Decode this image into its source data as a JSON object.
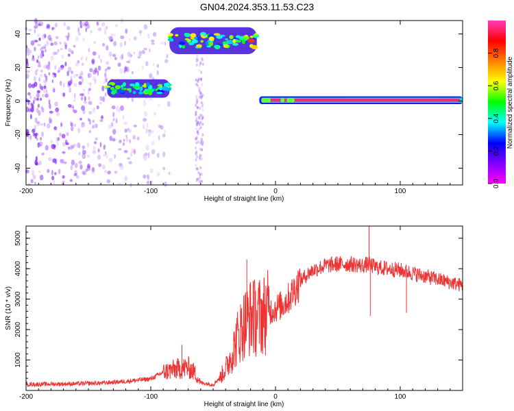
{
  "figure": {
    "title": "GN04.2024.353.11.53.C23"
  },
  "chart_data": [
    {
      "type": "heatmap",
      "title": "GN04.2024.353.11.53.C23",
      "xlabel": "Height of straight line (km)",
      "ylabel": "Frequency (Hz)",
      "xlim": [
        -200,
        150
      ],
      "ylim": [
        -50,
        48
      ],
      "x_ticks": [
        -200,
        -100,
        0,
        100
      ],
      "y_ticks": [
        40,
        20,
        0,
        -20,
        -40
      ],
      "colorbar": {
        "label": "Normalized spectral amplitude",
        "range": [
          0,
          1
        ],
        "ticks": [
          "0.0",
          "0.2",
          "0.4",
          "0.6",
          "0.8"
        ],
        "colormap": [
          "#ff00ff",
          "#8000ff",
          "#0000ff",
          "#00ffff",
          "#00ff00",
          "#ffff00",
          "#ff8000",
          "#ff0000",
          "#ff3cbe"
        ]
      },
      "features": [
        {
          "x_range": [
            -200,
            -85
          ],
          "freq_range": [
            -50,
            48
          ],
          "amplitude": 0.1,
          "kind": "scattered noise"
        },
        {
          "x_range": [
            -135,
            -85
          ],
          "freq_range": [
            2,
            13
          ],
          "amplitude": 0.45,
          "kind": "band"
        },
        {
          "x_range": [
            -85,
            -15
          ],
          "freq_range": [
            28,
            44
          ],
          "amplitude": 0.55,
          "kind": "band"
        },
        {
          "x_range": [
            -13,
            150
          ],
          "freq_range": [
            -1,
            2
          ],
          "amplitude": 0.95,
          "kind": "narrow line at 0 Hz"
        }
      ]
    },
    {
      "type": "line",
      "xlabel": "Height of straight line (km)",
      "ylabel": "SNR (10 * v/v)",
      "xlim": [
        -200,
        150
      ],
      "ylim": [
        0,
        5400
      ],
      "x_ticks": [
        -200,
        -100,
        0,
        100
      ],
      "y_ticks": [
        5000,
        4000,
        3000,
        2000,
        1000
      ],
      "color": "#ee3333",
      "series": [
        {
          "x": [
            -200,
            -180,
            -160,
            -140,
            -120,
            -100,
            -90,
            -80,
            -70,
            -65,
            -60,
            -50,
            -45,
            -40,
            -35,
            -30,
            -25,
            -20,
            -15,
            -10,
            -5,
            0,
            5,
            10,
            15,
            20,
            25,
            30,
            40,
            50,
            60,
            70,
            75,
            80,
            90,
            100,
            105,
            110,
            120,
            130,
            140,
            150
          ],
          "y": [
            200,
            210,
            220,
            240,
            300,
            380,
            600,
            700,
            750,
            600,
            250,
            200,
            400,
            700,
            1200,
            1800,
            2200,
            2400,
            2400,
            2500,
            2600,
            2700,
            2800,
            3000,
            3300,
            3600,
            3800,
            3950,
            4100,
            4150,
            4150,
            4100,
            4150,
            4050,
            4000,
            3950,
            3900,
            3850,
            3750,
            3650,
            3550,
            3450
          ],
          "spikes": [
            {
              "x": -75,
              "y": 1500
            },
            {
              "x": -23,
              "y": 4300
            },
            {
              "x": -18,
              "y": 3600
            },
            {
              "x": 75,
              "y": 5400
            },
            {
              "x": 76,
              "y": 2450
            },
            {
              "x": 105,
              "y": 2550
            }
          ]
        }
      ]
    }
  ]
}
